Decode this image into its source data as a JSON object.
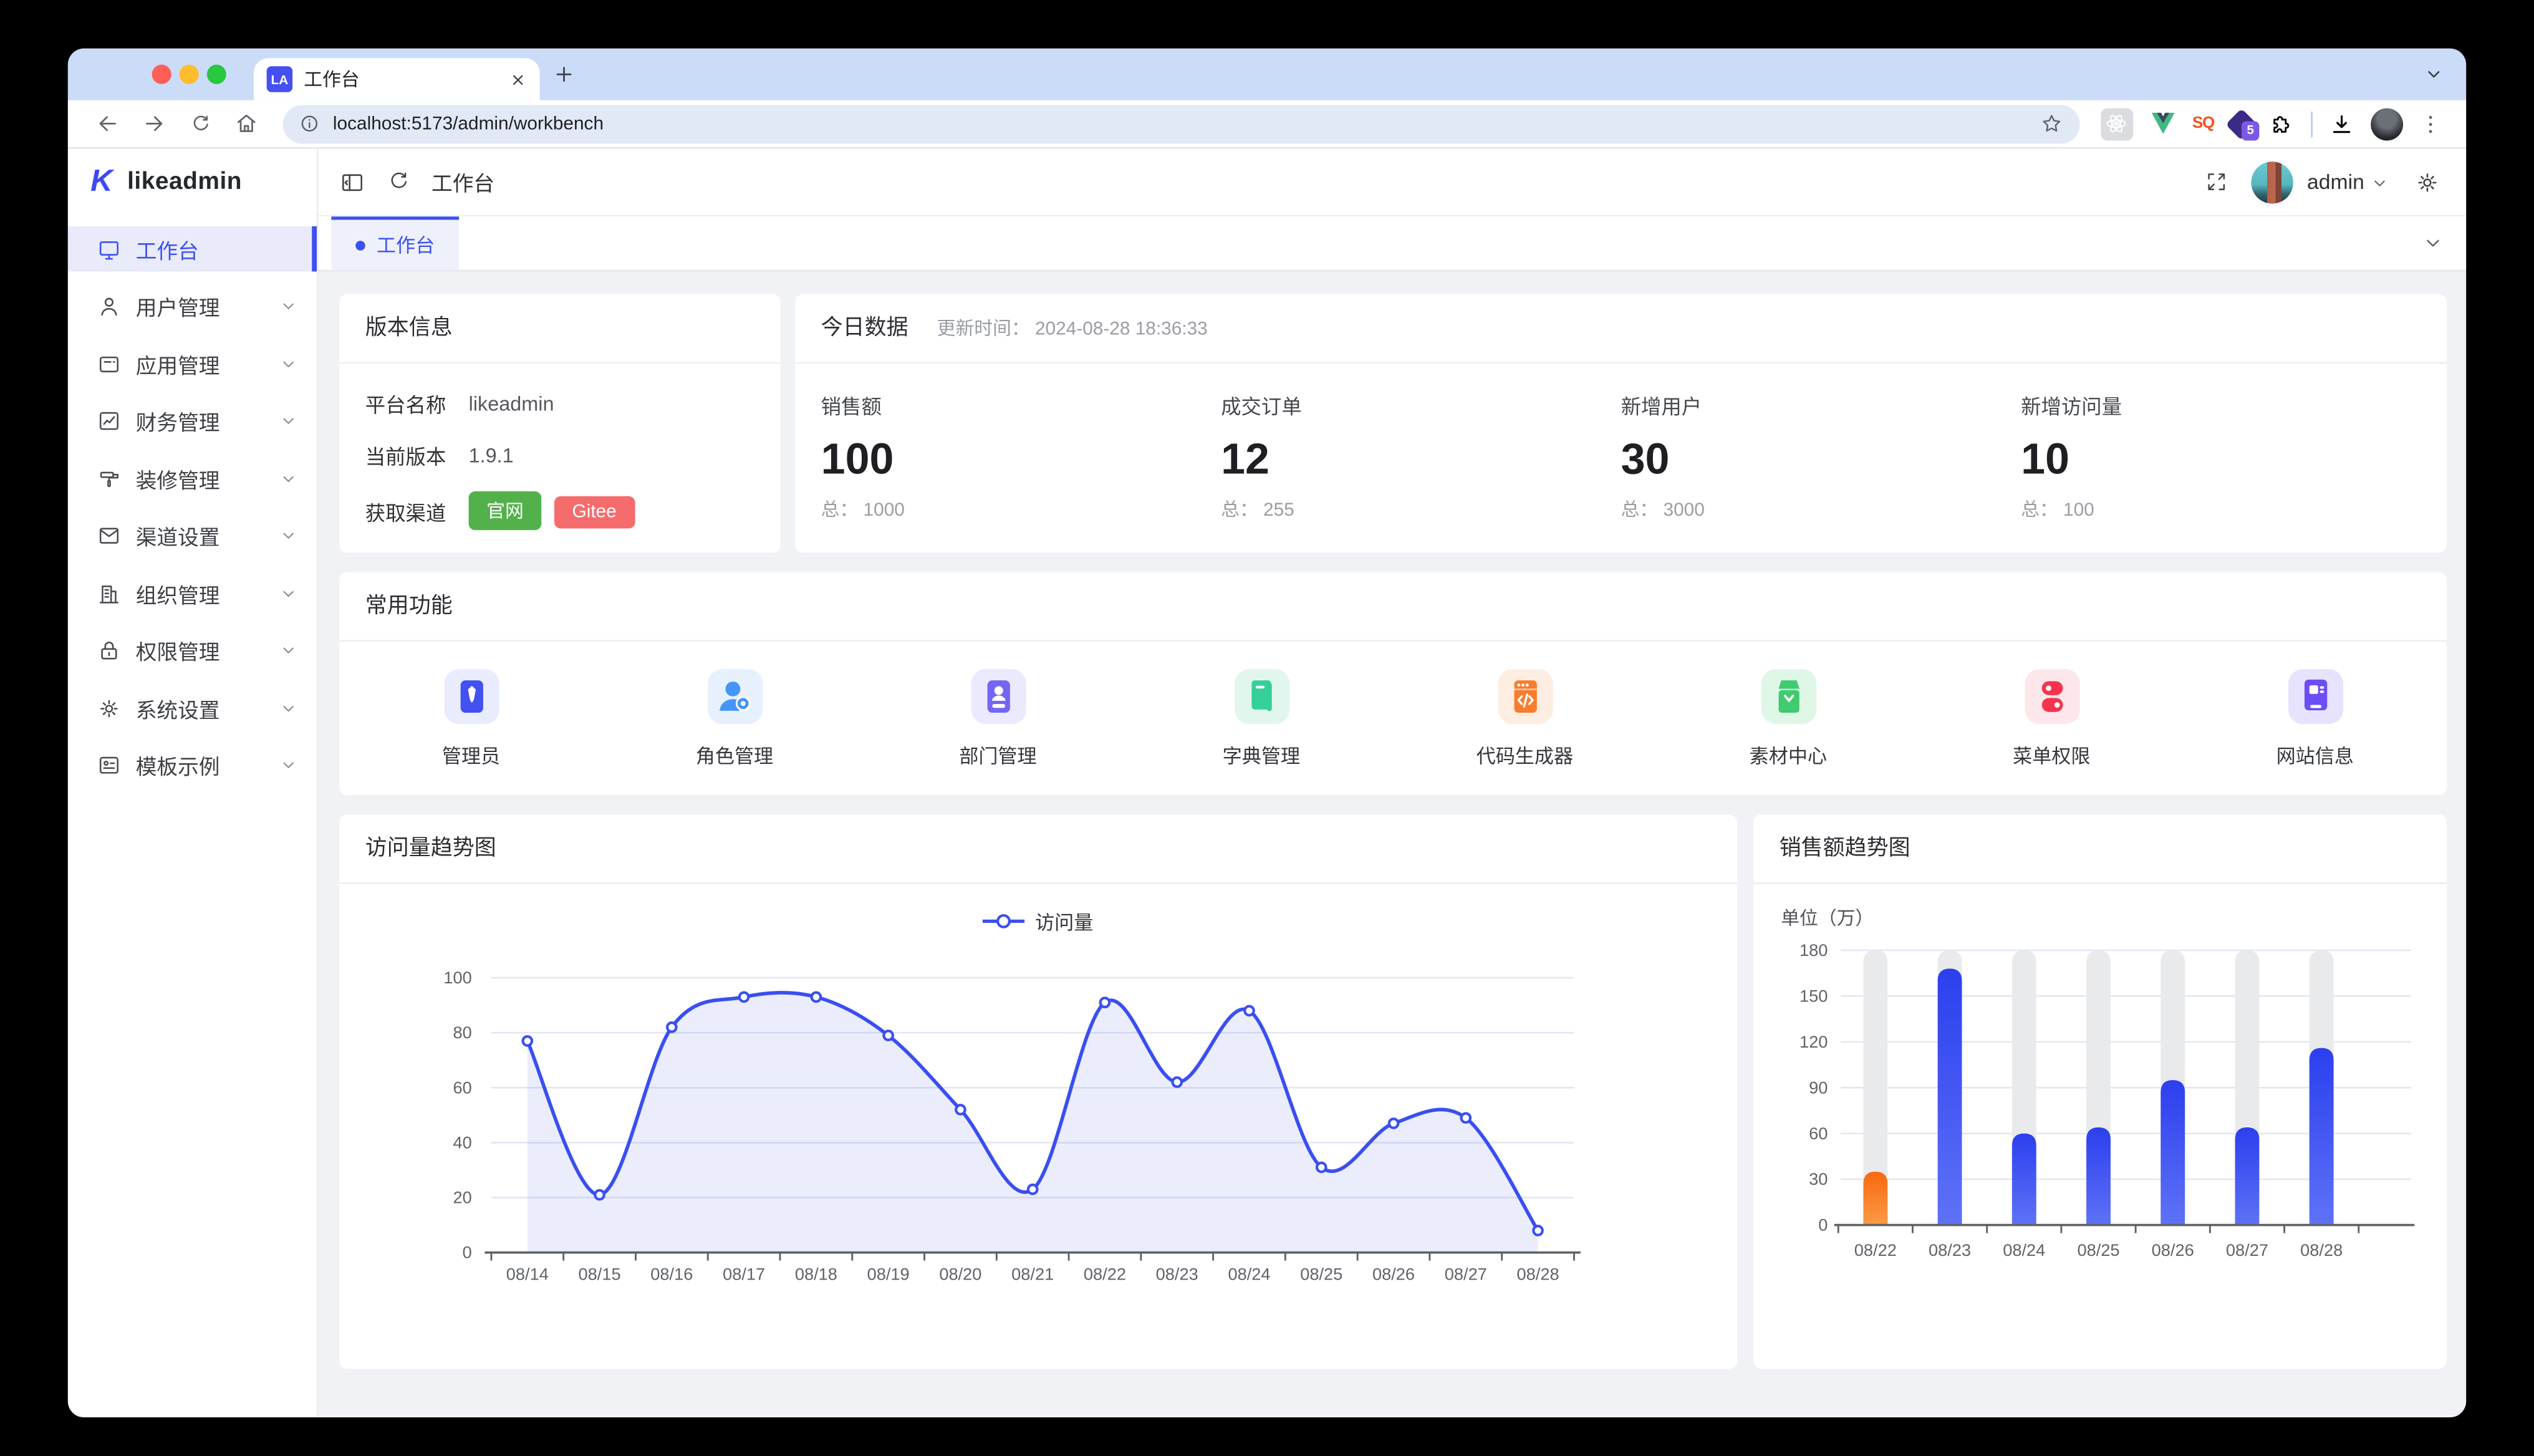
{
  "browser": {
    "tab": {
      "title": "工作台",
      "favicon_text": "LA"
    },
    "url": "localhost:5173/admin/workbench",
    "extension_badge": "5",
    "nav_icons": [
      "back-arrow-icon",
      "forward-arrow-icon",
      "reload-icon",
      "home-icon"
    ],
    "action_icons": [
      "bookmark-star-icon",
      "react-devtools-icon",
      "vue-devtools-icon",
      "sq-extension-icon",
      "s5-extension-icon",
      "extensions-puzzle-icon",
      "downloads-icon",
      "profile-avatar",
      "menu-kebab-icon"
    ]
  },
  "app": {
    "logo_text": "likeadmin",
    "header": {
      "breadcrumb": "工作台",
      "username": "admin",
      "icons": [
        "collapse-sidebar-icon",
        "refresh-icon",
        "fullscreen-icon",
        "gear-icon"
      ]
    },
    "page_tab": {
      "label": "工作台"
    },
    "sidebar": {
      "items": [
        {
          "id": "workbench",
          "icon": "monitor",
          "label": "工作台",
          "active": true,
          "chevron": false
        },
        {
          "id": "users",
          "icon": "user",
          "label": "用户管理",
          "active": false,
          "chevron": true
        },
        {
          "id": "apps",
          "icon": "app-window",
          "label": "应用管理",
          "active": false,
          "chevron": true
        },
        {
          "id": "finance",
          "icon": "bar-chart",
          "label": "财务管理",
          "active": false,
          "chevron": true
        },
        {
          "id": "decoration",
          "icon": "paint-roller",
          "label": "装修管理",
          "active": false,
          "chevron": true
        },
        {
          "id": "channel",
          "icon": "mail",
          "label": "渠道设置",
          "active": false,
          "chevron": true
        },
        {
          "id": "organization",
          "icon": "building",
          "label": "组织管理",
          "active": false,
          "chevron": true
        },
        {
          "id": "permission",
          "icon": "lock",
          "label": "权限管理",
          "active": false,
          "chevron": true
        },
        {
          "id": "system",
          "icon": "gear",
          "label": "系统设置",
          "active": false,
          "chevron": true
        },
        {
          "id": "template",
          "icon": "image-card",
          "label": "模板示例",
          "active": false,
          "chevron": true
        }
      ]
    }
  },
  "version_card": {
    "title": "版本信息",
    "rows": [
      {
        "label": "平台名称",
        "value": "likeadmin"
      },
      {
        "label": "当前版本",
        "value": "1.9.1"
      }
    ],
    "channel_label": "获取渠道",
    "channel_buttons": [
      {
        "label": "官网",
        "color": "#53b14b"
      },
      {
        "label": "Gitee",
        "color": "#f56c6c"
      }
    ]
  },
  "today_card": {
    "title": "今日数据",
    "update_time": "更新时间： 2024-08-28 18:36:33",
    "stats": [
      {
        "label": "销售额",
        "value": "100",
        "total": "总： 1000"
      },
      {
        "label": "成交订单",
        "value": "12",
        "total": "总： 255"
      },
      {
        "label": "新增用户",
        "value": "30",
        "total": "总： 3000"
      },
      {
        "label": "新增访问量",
        "value": "10",
        "total": "总： 100"
      }
    ]
  },
  "quick_card": {
    "title": "常用功能",
    "items": [
      {
        "id": "admin",
        "label": "管理员",
        "icon": "admin-badge",
        "tile": "#e9ecfc",
        "color": "#4351f0"
      },
      {
        "id": "role",
        "label": "角色管理",
        "icon": "user-gear",
        "tile": "#e6f1fd",
        "color": "#4596f7"
      },
      {
        "id": "dept",
        "label": "部门管理",
        "icon": "dept-card",
        "tile": "#ebe9fd",
        "color": "#7366f2"
      },
      {
        "id": "dict",
        "label": "字典管理",
        "icon": "book",
        "tile": "#e1f7ee",
        "color": "#35d09a"
      },
      {
        "id": "codegen",
        "label": "代码生成器",
        "icon": "code-window",
        "tile": "#fdeee1",
        "color": "#f97c2e"
      },
      {
        "id": "material",
        "label": "素材中心",
        "icon": "material-box",
        "tile": "#def7e6",
        "color": "#3fcb6e"
      },
      {
        "id": "menu-auth",
        "label": "菜单权限",
        "icon": "toggle-pills",
        "tile": "#fde7ea",
        "color": "#f4344f"
      },
      {
        "id": "website",
        "label": "网站信息",
        "icon": "browser-info",
        "tile": "#e7e2fd",
        "color": "#6d4df5"
      }
    ]
  },
  "chart_data": [
    {
      "type": "line",
      "title": "访问量趋势图",
      "x": [
        "08/14",
        "08/15",
        "08/16",
        "08/17",
        "08/18",
        "08/19",
        "08/20",
        "08/21",
        "08/22",
        "08/23",
        "08/24",
        "08/25",
        "08/26",
        "08/27",
        "08/28"
      ],
      "series": [
        {
          "name": "访问量",
          "values": [
            77,
            21,
            82,
            93,
            93,
            79,
            52,
            23,
            91,
            62,
            88,
            31,
            47,
            49,
            8
          ]
        }
      ],
      "ylim": [
        0,
        100
      ],
      "yticks": [
        0,
        20,
        40,
        60,
        80,
        100
      ],
      "color": "#3a4ff0",
      "smooth": true,
      "area": true,
      "legend_position": "top-center",
      "grid": true
    },
    {
      "type": "bar",
      "title": "销售额趋势图",
      "unit_label": "单位（万）",
      "categories": [
        "08/22",
        "08/23",
        "08/24",
        "08/25",
        "08/26",
        "08/27",
        "08/28"
      ],
      "values": [
        35,
        168,
        60,
        64,
        95,
        64,
        116
      ],
      "ylim": [
        0,
        180
      ],
      "yticks": [
        0,
        30,
        60,
        90,
        120,
        150,
        180
      ],
      "colors": {
        "bar_top": "#2c3fee",
        "bar_bottom": "#5e72f7",
        "highlight_top": "#f8680f",
        "highlight_bottom": "#fb9a47",
        "track": "#e9eaec"
      },
      "highlight_index": 0,
      "grid": true
    }
  ],
  "theme": {
    "primary": "#3d50f5",
    "chrome_bg": "#cbdcf8",
    "content_bg": "#f0f2f5"
  }
}
